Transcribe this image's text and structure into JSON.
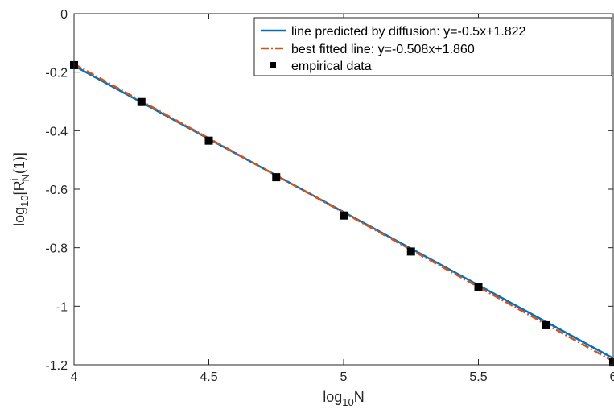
{
  "chart_data": {
    "type": "line",
    "xlim": [
      4,
      6
    ],
    "ylim": [
      -1.2,
      0
    ],
    "xticks": [
      4,
      4.5,
      5,
      5.5,
      6
    ],
    "yticks": [
      0,
      -0.2,
      -0.4,
      -0.6,
      -0.8,
      -1,
      -1.2
    ],
    "xtick_labels": [
      "4",
      "4.5",
      "5",
      "5.5",
      "6"
    ],
    "ytick_labels": [
      "0",
      "-0.2",
      "-0.4",
      "-0.6",
      "-0.8",
      "-1",
      "-1.2"
    ],
    "xlabel": {
      "base": "log",
      "sub": "10",
      "rest": "N"
    },
    "ylabel": {
      "base": "log",
      "sub": "10",
      "mid": "[R",
      "sup": "i",
      "sub2": "N",
      "rest": "(1)]"
    },
    "grid": false,
    "legend_position": "top-right",
    "series": [
      {
        "name": "line predicted by diffusion: y=-0.5x+1.822",
        "kind": "line",
        "slope": -0.5,
        "intercept": 1.822,
        "color": "#0072BD",
        "style": "solid"
      },
      {
        "name": "best fitted line: y=-0.508x+1.860",
        "kind": "line",
        "slope": -0.508,
        "intercept": 1.86,
        "color": "#D95319",
        "style": "dashdot"
      },
      {
        "name": "empirical data",
        "kind": "scatter",
        "color": "#000000",
        "marker": "square",
        "x": [
          4,
          4.25,
          4.5,
          4.75,
          5,
          5.25,
          5.5,
          5.75,
          6
        ],
        "y": [
          -0.176,
          -0.302,
          -0.434,
          -0.559,
          -0.69,
          -0.813,
          -0.935,
          -1.065,
          -1.192
        ]
      }
    ]
  }
}
